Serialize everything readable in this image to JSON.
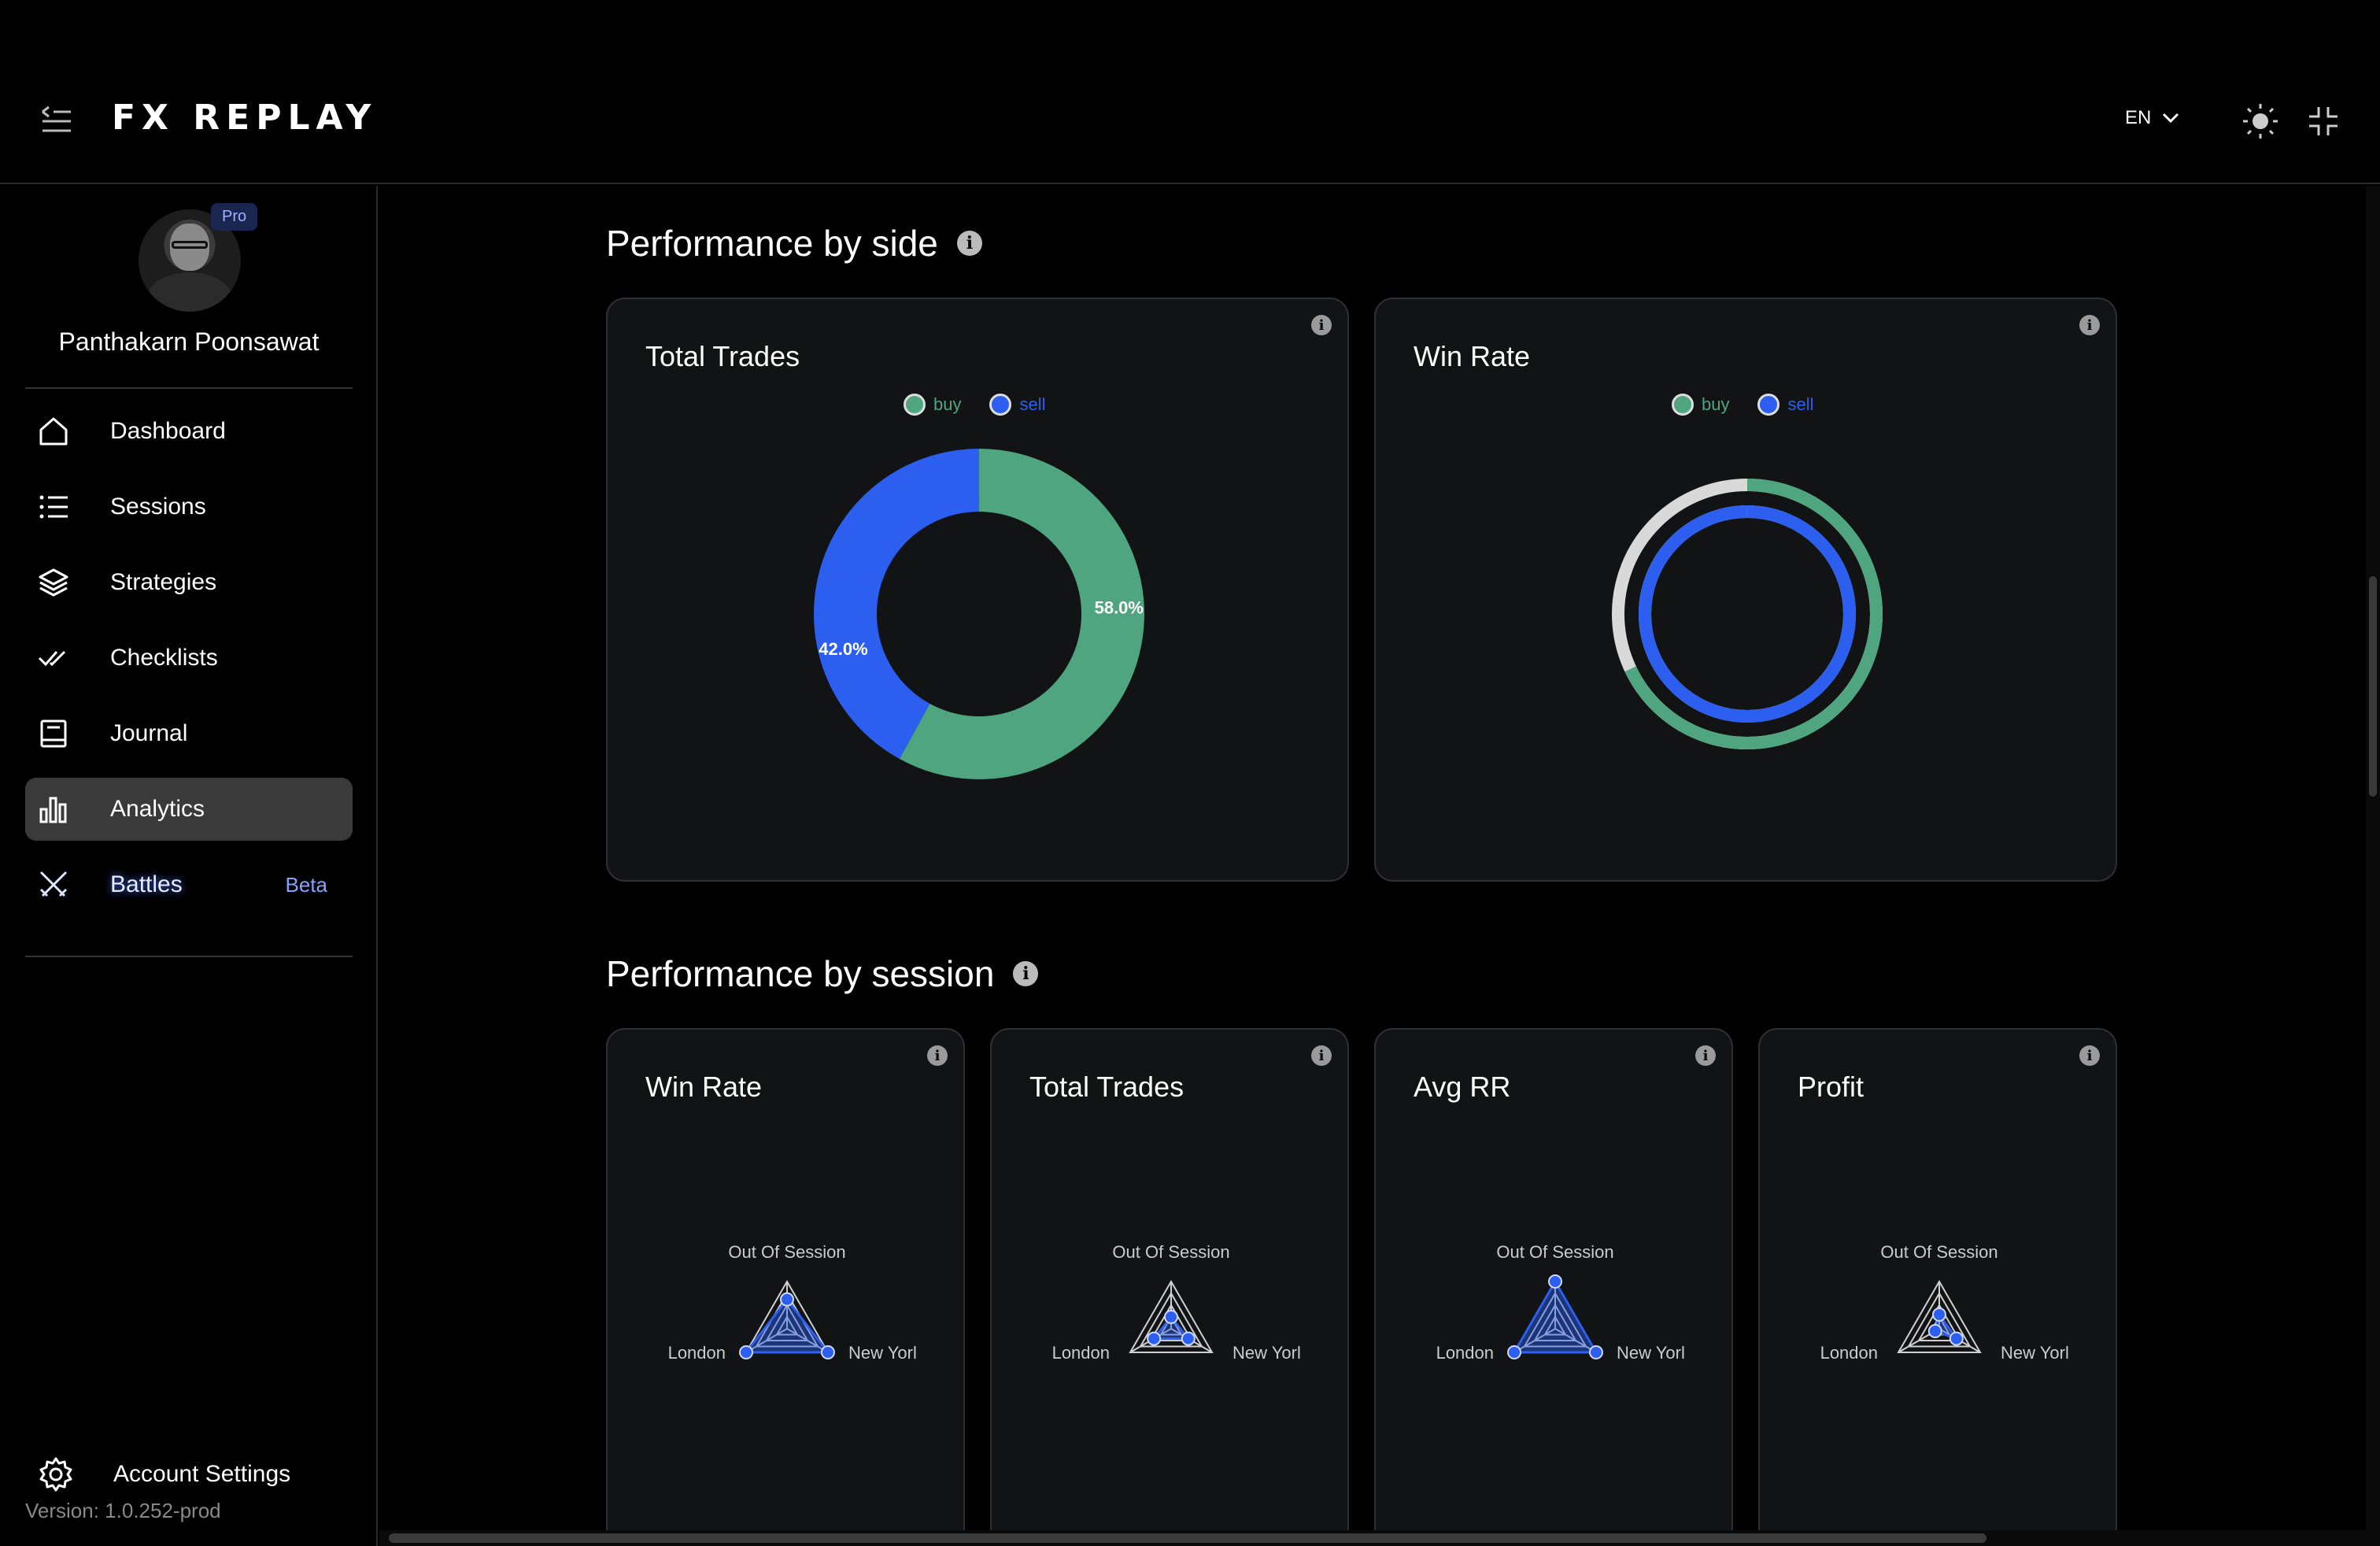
{
  "header": {
    "logo_text": "FX REPLAY",
    "language": "EN"
  },
  "sidebar": {
    "user_name": "Panthakarn Poonsawat",
    "plan_badge": "Pro",
    "items": [
      {
        "label": "Dashboard",
        "icon": "home-icon"
      },
      {
        "label": "Sessions",
        "icon": "list-icon"
      },
      {
        "label": "Strategies",
        "icon": "layers-icon"
      },
      {
        "label": "Checklists",
        "icon": "double-check-icon"
      },
      {
        "label": "Journal",
        "icon": "book-icon"
      },
      {
        "label": "Analytics",
        "icon": "bar-chart-icon",
        "active": true
      },
      {
        "label": "Battles",
        "icon": "crossed-swords-icon",
        "badge": "Beta"
      }
    ],
    "account_settings": "Account Settings",
    "version": "Version: 1.0.252-prod"
  },
  "sections": {
    "by_side": {
      "title": "Performance by side",
      "cards": {
        "total_trades": {
          "title": "Total Trades"
        },
        "win_rate": {
          "title": "Win Rate"
        }
      }
    },
    "by_session": {
      "title": "Performance by session",
      "cards": {
        "win_rate": {
          "title": "Win Rate"
        },
        "total_trades": {
          "title": "Total Trades"
        },
        "avg_rr": {
          "title": "Avg RR"
        },
        "profit": {
          "title": "Profit"
        }
      }
    }
  },
  "colors": {
    "buy": "#4ea57f",
    "sell": "#2c5ff0",
    "track": "#d9d9d9"
  },
  "chart_data": [
    {
      "type": "pie",
      "title": "Total Trades",
      "legend": [
        "buy",
        "sell"
      ],
      "legend_placement": "top-center",
      "categories": [
        "buy",
        "sell"
      ],
      "values": [
        58.0,
        42.0
      ],
      "labels": [
        "58.0%",
        "42.0%"
      ]
    },
    {
      "type": "pie",
      "title": "Win Rate",
      "legend": [
        "buy",
        "sell"
      ],
      "legend_placement": "top-center",
      "categories": [
        "buy",
        "sell"
      ],
      "values": [
        0.68,
        1.0
      ]
    },
    {
      "type": "radar",
      "title": "Win Rate",
      "categories": [
        "Out Of Session",
        "New Yorl",
        "London"
      ],
      "values": [
        0.62,
        1.0,
        1.0
      ]
    },
    {
      "type": "radar",
      "title": "Total Trades",
      "categories": [
        "Out Of Session",
        "New Yorl",
        "London"
      ],
      "values": [
        0.25,
        0.42,
        0.42
      ]
    },
    {
      "type": "radar",
      "title": "Avg RR",
      "categories": [
        "Out Of Session",
        "New Yorl",
        "London"
      ],
      "values": [
        1.0,
        1.0,
        1.0
      ]
    },
    {
      "type": "radar",
      "title": "Profit",
      "categories": [
        "Out Of Session",
        "New Yorl",
        "London"
      ],
      "values": [
        0.3,
        0.42,
        0.1
      ]
    }
  ]
}
